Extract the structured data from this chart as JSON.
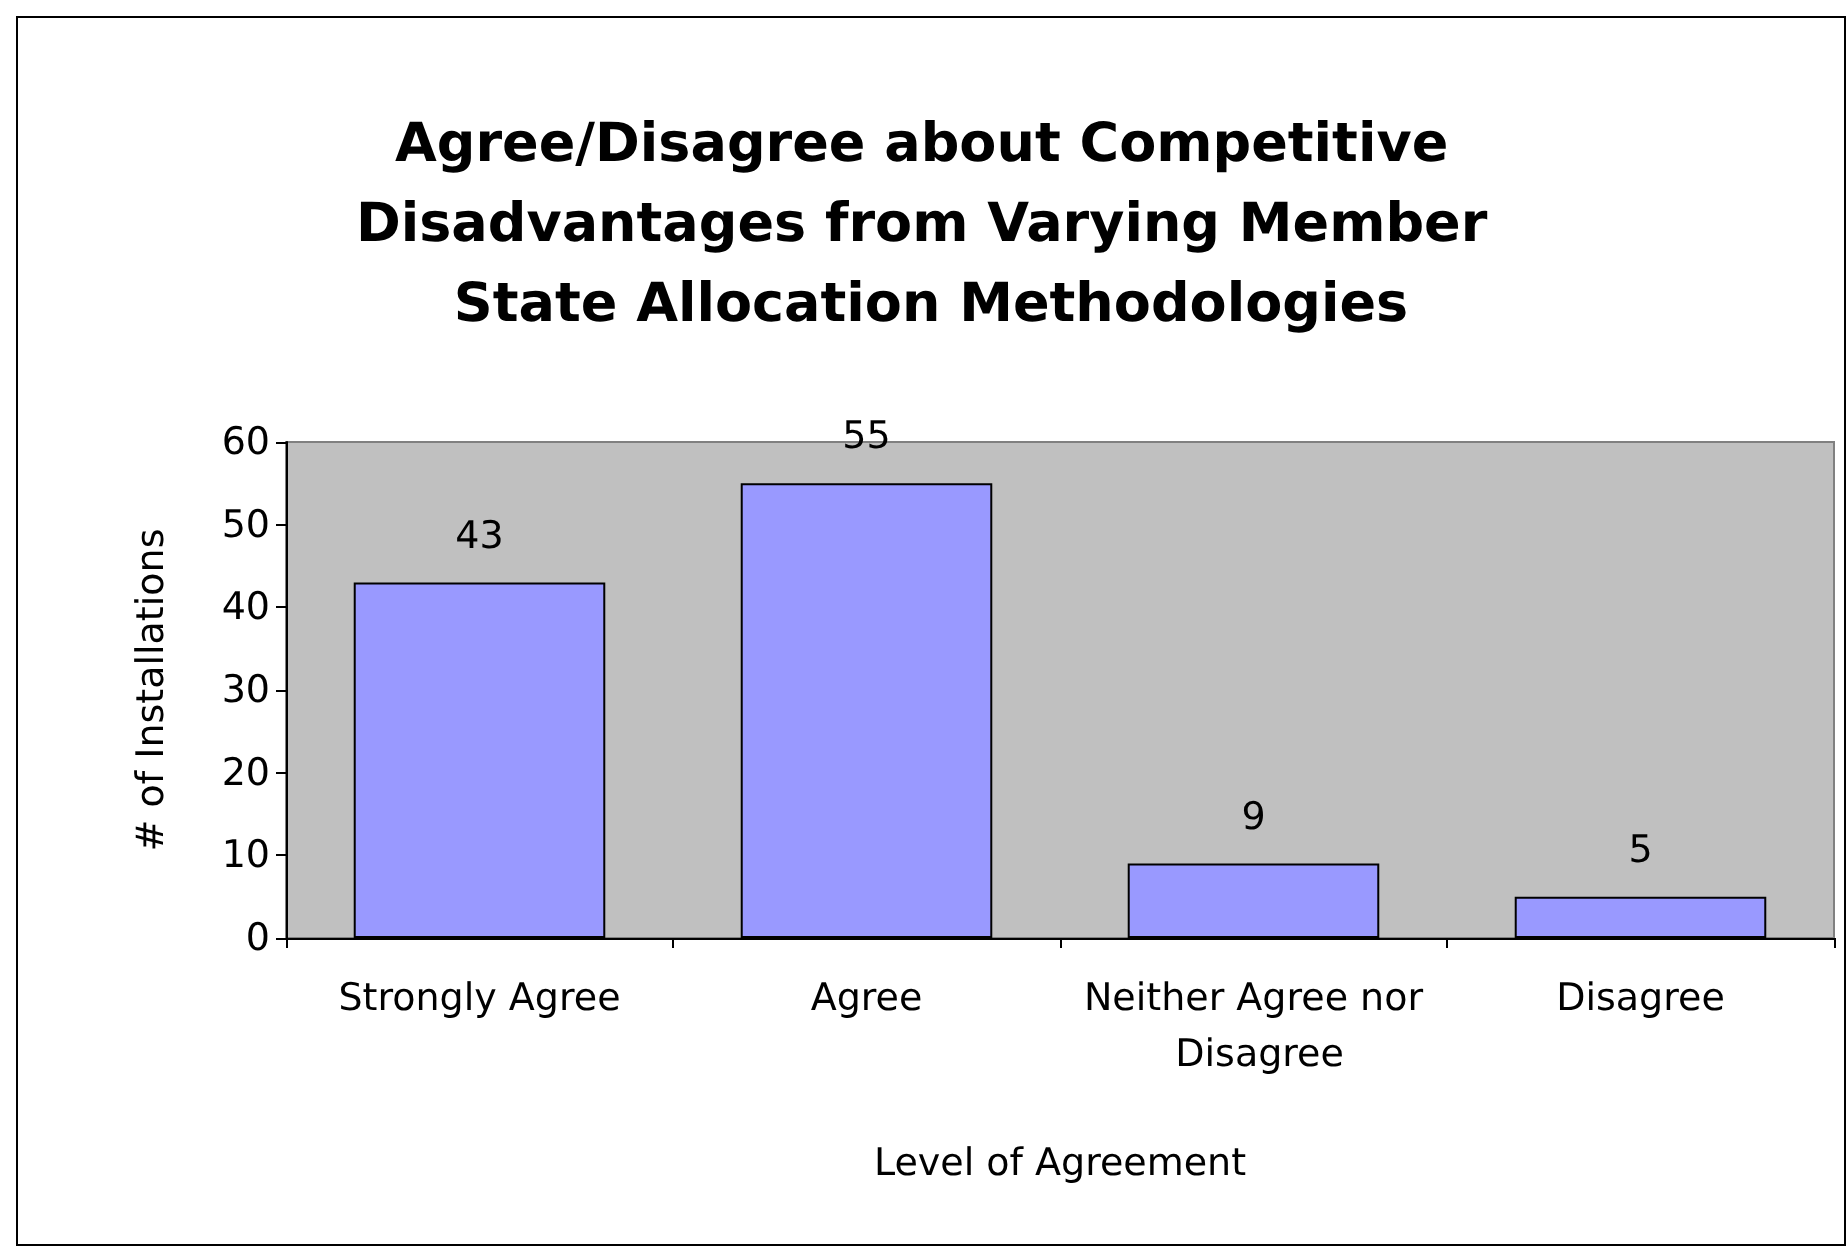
{
  "chart_data": {
    "type": "bar",
    "title": "Agree/Disagree about Competitive Disadvantages from Varying Member State Allocation Methodologies",
    "xlabel": "Level of Agreement",
    "ylabel": "# of Installations",
    "categories": [
      "Strongly Agree",
      "Agree",
      "Neither Agree nor Disagree",
      "Disagree"
    ],
    "values": [
      43,
      55,
      9,
      5
    ],
    "color": "#9999ff",
    "ylim": [
      0,
      60
    ],
    "yticks": [
      0,
      10,
      20,
      30,
      40,
      50,
      60
    ],
    "data_labels": true
  }
}
